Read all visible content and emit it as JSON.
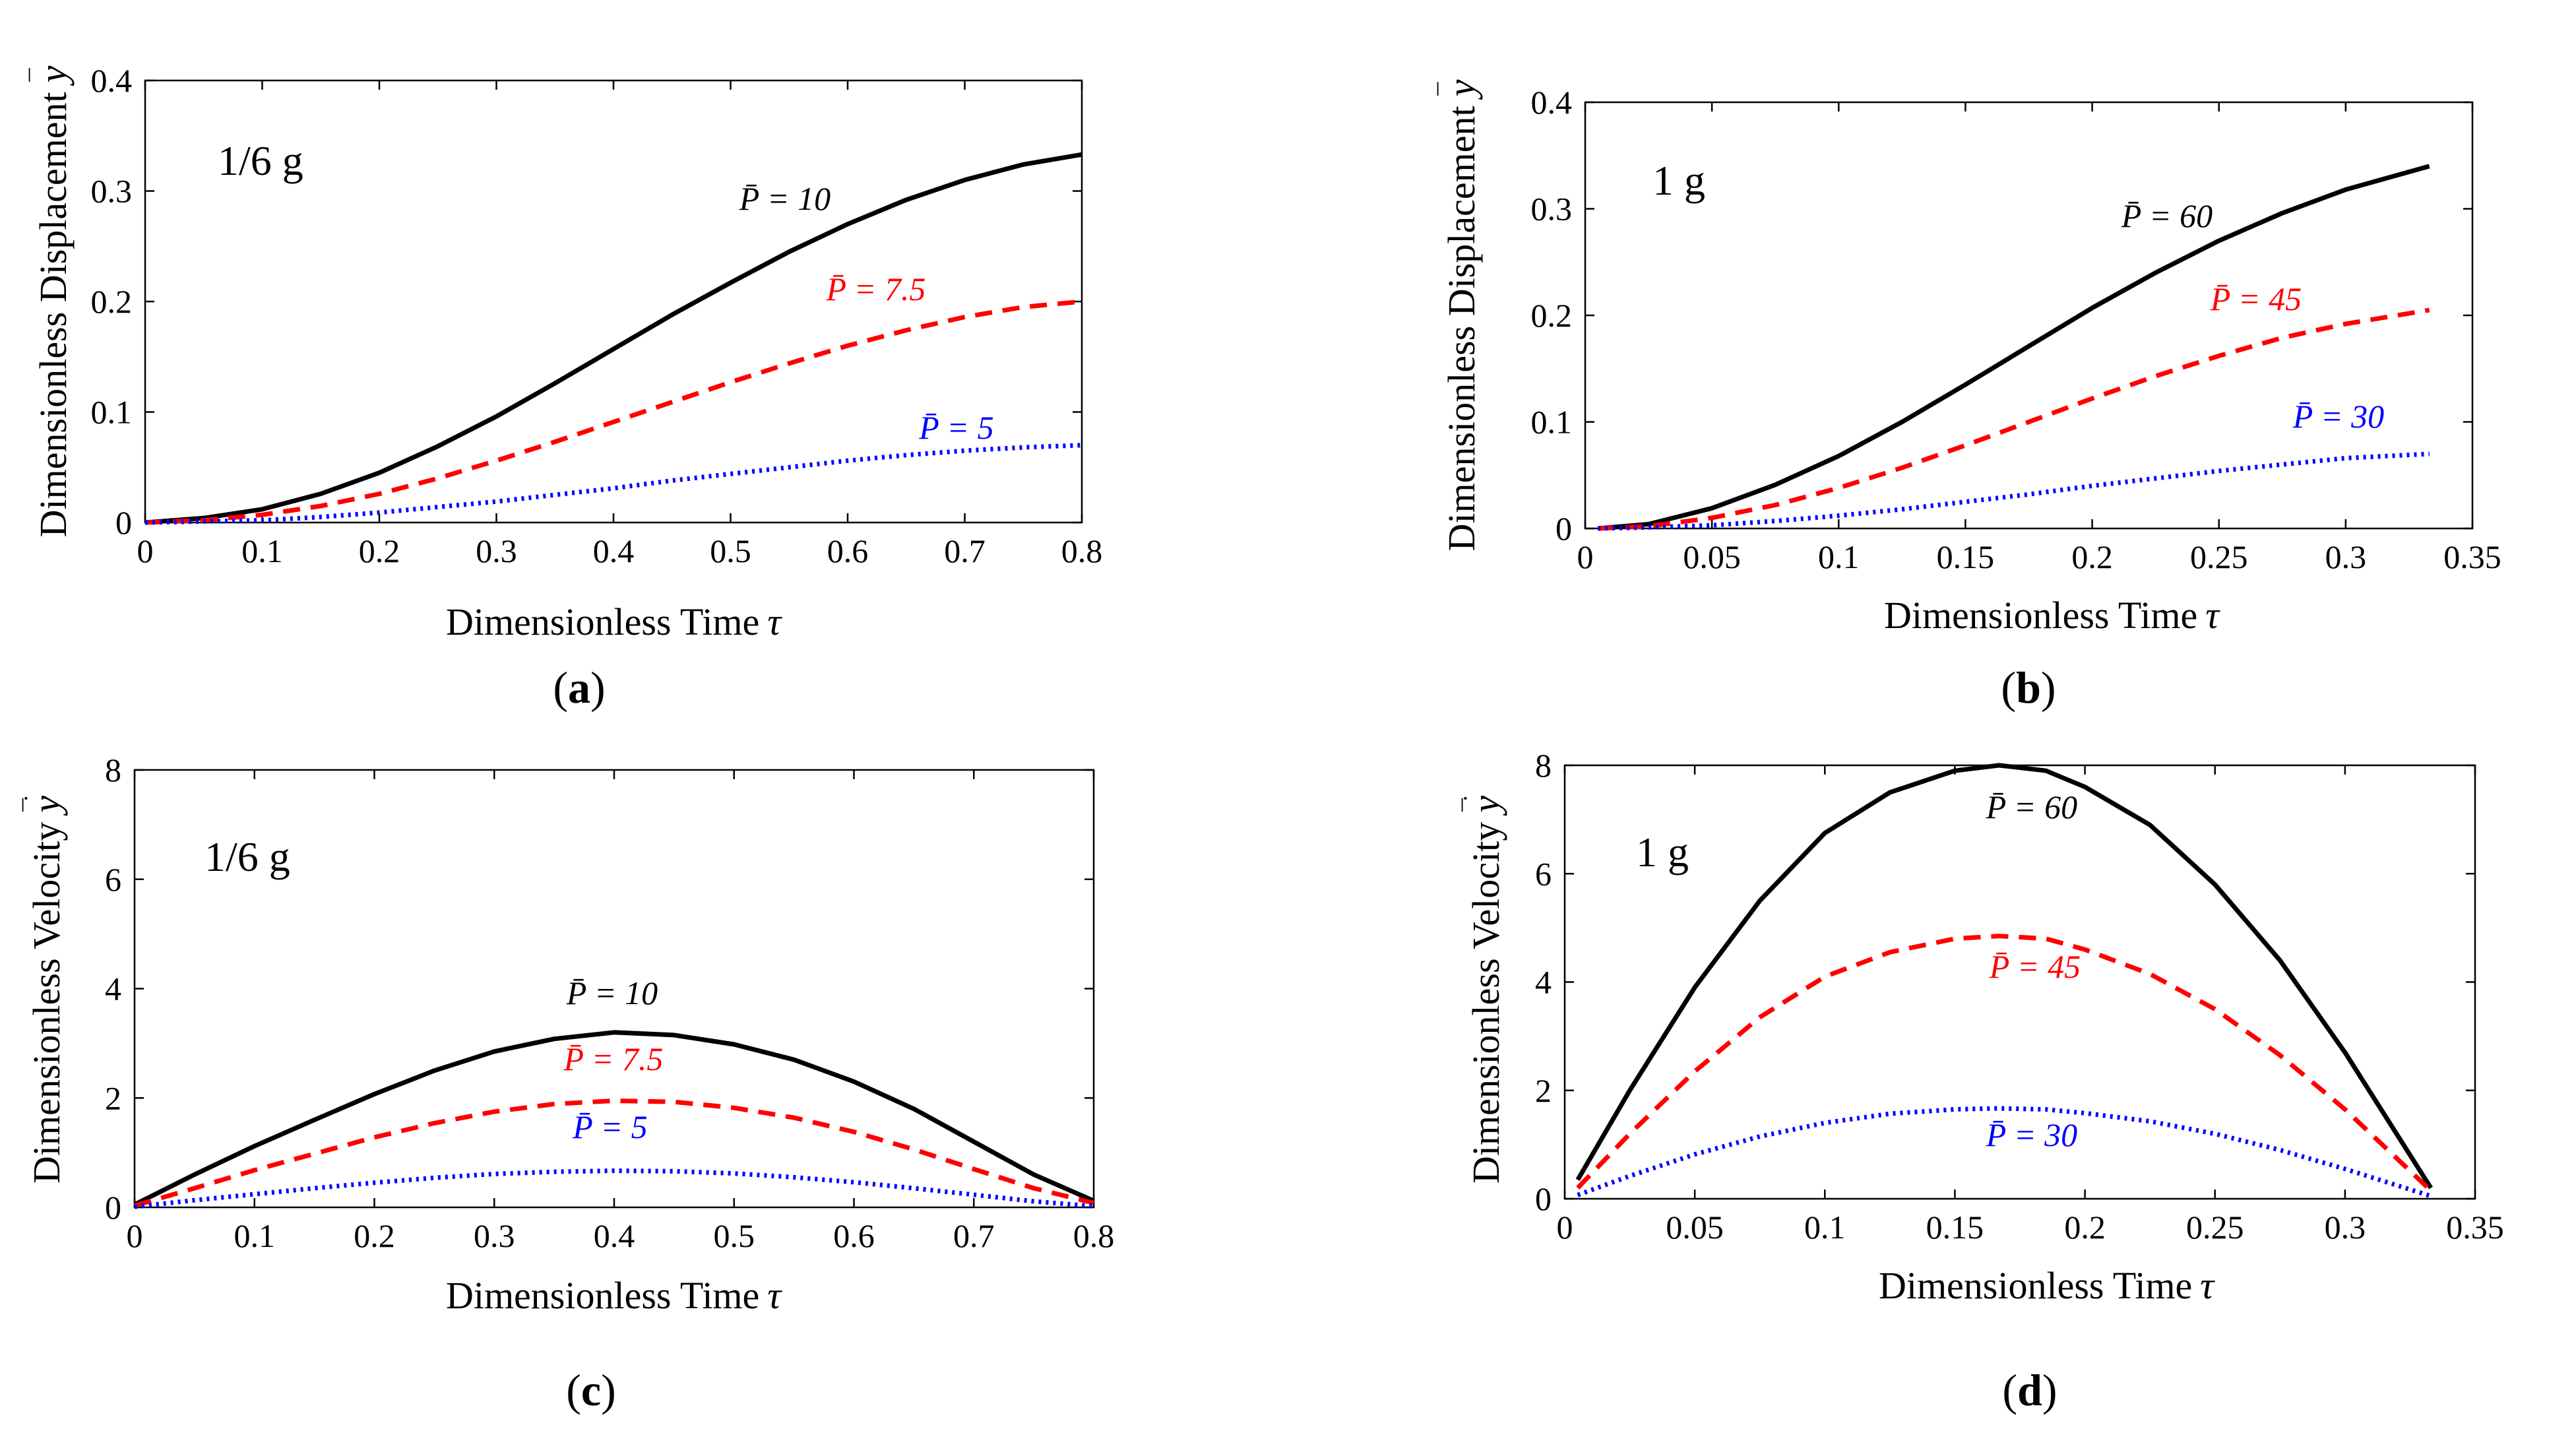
{
  "chart_data": [
    {
      "id": "a",
      "type": "line",
      "caption": "a",
      "gravity_label": "1/6 g",
      "xlabel": "Dimensionless Time",
      "xlabel_symbol": "τ",
      "ylabel": "Dimensionless Displacement",
      "ylabel_symbol": "y",
      "ylabel_accent": "¯",
      "xlim": [
        0,
        0.8
      ],
      "ylim": [
        0,
        0.4
      ],
      "xticks": [
        0,
        0.1,
        0.2,
        0.3,
        0.4,
        0.5,
        0.6,
        0.7,
        0.8
      ],
      "yticks": [
        0,
        0.1,
        0.2,
        0.3,
        0.4
      ],
      "grid": false,
      "series": [
        {
          "name": "P̄ = 10",
          "color": "#000000",
          "style": "solid",
          "x": [
            0,
            0.05,
            0.1,
            0.15,
            0.2,
            0.25,
            0.3,
            0.35,
            0.4,
            0.45,
            0.5,
            0.55,
            0.6,
            0.65,
            0.7,
            0.75,
            0.8
          ],
          "y": [
            0,
            0.004,
            0.012,
            0.026,
            0.045,
            0.069,
            0.096,
            0.126,
            0.157,
            0.188,
            0.217,
            0.245,
            0.27,
            0.292,
            0.31,
            0.324,
            0.333
          ]
        },
        {
          "name": "P̄ = 7.5",
          "color": "#ff0000",
          "style": "dashed",
          "x": [
            0,
            0.05,
            0.1,
            0.15,
            0.2,
            0.25,
            0.3,
            0.35,
            0.4,
            0.45,
            0.5,
            0.55,
            0.6,
            0.65,
            0.7,
            0.75,
            0.8
          ],
          "y": [
            0,
            0.002,
            0.007,
            0.015,
            0.026,
            0.04,
            0.056,
            0.073,
            0.091,
            0.109,
            0.127,
            0.144,
            0.16,
            0.174,
            0.186,
            0.195,
            0.2
          ]
        },
        {
          "name": "P̄ = 5",
          "color": "#0000ff",
          "style": "dotted",
          "x": [
            0,
            0.05,
            0.1,
            0.15,
            0.2,
            0.25,
            0.3,
            0.35,
            0.4,
            0.45,
            0.5,
            0.55,
            0.6,
            0.65,
            0.7,
            0.75,
            0.8
          ],
          "y": [
            0,
            0.001,
            0.002,
            0.005,
            0.009,
            0.014,
            0.019,
            0.025,
            0.031,
            0.038,
            0.044,
            0.05,
            0.056,
            0.061,
            0.065,
            0.068,
            0.07
          ]
        }
      ]
    },
    {
      "id": "b",
      "type": "line",
      "caption": "b",
      "gravity_label": "1 g",
      "xlabel": "Dimensionless Time",
      "xlabel_symbol": "τ",
      "ylabel": "Dimensionless Displacement",
      "ylabel_symbol": "y",
      "ylabel_accent": "¯",
      "xlim": [
        0,
        0.35
      ],
      "ylim": [
        0,
        0.4
      ],
      "xticks": [
        0,
        0.05,
        0.1,
        0.15,
        0.2,
        0.25,
        0.3,
        0.35
      ],
      "yticks": [
        0,
        0.1,
        0.2,
        0.3,
        0.4
      ],
      "grid": false,
      "series": [
        {
          "name": "P̄ = 60",
          "color": "#000000",
          "style": "solid",
          "x": [
            0.005,
            0.025,
            0.05,
            0.075,
            0.1,
            0.125,
            0.15,
            0.175,
            0.2,
            0.225,
            0.25,
            0.275,
            0.3,
            0.333
          ],
          "y": [
            0,
            0.004,
            0.019,
            0.041,
            0.068,
            0.1,
            0.135,
            0.171,
            0.207,
            0.24,
            0.27,
            0.296,
            0.318,
            0.34
          ]
        },
        {
          "name": "P̄ = 45",
          "color": "#ff0000",
          "style": "dashed",
          "x": [
            0.005,
            0.025,
            0.05,
            0.075,
            0.1,
            0.125,
            0.15,
            0.175,
            0.2,
            0.225,
            0.25,
            0.275,
            0.3,
            0.333
          ],
          "y": [
            0,
            0.002,
            0.01,
            0.022,
            0.038,
            0.057,
            0.078,
            0.1,
            0.122,
            0.143,
            0.162,
            0.179,
            0.192,
            0.205
          ]
        },
        {
          "name": "P̄ = 30",
          "color": "#0000ff",
          "style": "dotted",
          "x": [
            0.005,
            0.025,
            0.05,
            0.075,
            0.1,
            0.125,
            0.15,
            0.175,
            0.2,
            0.225,
            0.25,
            0.275,
            0.3,
            0.333
          ],
          "y": [
            0,
            0.001,
            0.003,
            0.007,
            0.012,
            0.018,
            0.025,
            0.032,
            0.04,
            0.047,
            0.054,
            0.06,
            0.066,
            0.07
          ]
        }
      ]
    },
    {
      "id": "c",
      "type": "line",
      "caption": "c",
      "gravity_label": "1/6 g",
      "xlabel": "Dimensionless Time",
      "xlabel_symbol": "τ",
      "ylabel": "Dimensionless Velocity",
      "ylabel_symbol": "y",
      "ylabel_accent": "¯̇",
      "xlim": [
        0,
        0.8
      ],
      "ylim": [
        0,
        8
      ],
      "xticks": [
        0,
        0.1,
        0.2,
        0.3,
        0.4,
        0.5,
        0.6,
        0.7,
        0.8
      ],
      "yticks": [
        0,
        2,
        4,
        6,
        8
      ],
      "grid": false,
      "series": [
        {
          "name": "P̄ = 10",
          "color": "#000000",
          "style": "solid",
          "x": [
            0,
            0.05,
            0.1,
            0.15,
            0.2,
            0.25,
            0.3,
            0.35,
            0.4,
            0.45,
            0.5,
            0.55,
            0.6,
            0.65,
            0.7,
            0.75,
            0.8
          ],
          "y": [
            0.05,
            0.6,
            1.12,
            1.6,
            2.07,
            2.5,
            2.85,
            3.08,
            3.2,
            3.15,
            2.98,
            2.7,
            2.3,
            1.8,
            1.2,
            0.6,
            0.12
          ]
        },
        {
          "name": "P̄ = 7.5",
          "color": "#ff0000",
          "style": "dashed",
          "x": [
            0,
            0.05,
            0.1,
            0.15,
            0.2,
            0.25,
            0.3,
            0.35,
            0.4,
            0.45,
            0.5,
            0.55,
            0.6,
            0.65,
            0.7,
            0.75,
            0.8
          ],
          "y": [
            0.03,
            0.35,
            0.68,
            0.98,
            1.28,
            1.54,
            1.75,
            1.89,
            1.95,
            1.93,
            1.82,
            1.64,
            1.38,
            1.06,
            0.7,
            0.35,
            0.08
          ]
        },
        {
          "name": "P̄ = 5",
          "color": "#0000ff",
          "style": "dotted",
          "x": [
            0,
            0.05,
            0.1,
            0.15,
            0.2,
            0.25,
            0.3,
            0.35,
            0.4,
            0.45,
            0.5,
            0.55,
            0.6,
            0.65,
            0.7,
            0.75,
            0.8
          ],
          "y": [
            0.01,
            0.13,
            0.24,
            0.35,
            0.45,
            0.54,
            0.61,
            0.65,
            0.67,
            0.66,
            0.62,
            0.55,
            0.46,
            0.35,
            0.23,
            0.11,
            0.02
          ]
        }
      ]
    },
    {
      "id": "d",
      "type": "line",
      "caption": "d",
      "gravity_label": "1 g",
      "xlabel": "Dimensionless Time",
      "xlabel_symbol": "τ",
      "ylabel": "Dimensionless Velocity",
      "ylabel_symbol": "y",
      "ylabel_accent": "¯̇",
      "xlim": [
        0,
        0.35
      ],
      "ylim": [
        0,
        8
      ],
      "xticks": [
        0,
        0.05,
        0.1,
        0.15,
        0.2,
        0.25,
        0.3,
        0.35
      ],
      "yticks": [
        0,
        2,
        4,
        6,
        8
      ],
      "grid": false,
      "series": [
        {
          "name": "P̄ = 60",
          "color": "#000000",
          "style": "solid",
          "x": [
            0.005,
            0.025,
            0.05,
            0.075,
            0.1,
            0.125,
            0.15,
            0.167,
            0.185,
            0.2,
            0.225,
            0.25,
            0.275,
            0.3,
            0.333
          ],
          "y": [
            0.35,
            2.0,
            3.9,
            5.5,
            6.75,
            7.5,
            7.9,
            8.0,
            7.9,
            7.6,
            6.9,
            5.8,
            4.4,
            2.7,
            0.2
          ]
        },
        {
          "name": "P̄ = 45",
          "color": "#ff0000",
          "style": "dashed",
          "x": [
            0.005,
            0.025,
            0.05,
            0.075,
            0.1,
            0.125,
            0.15,
            0.167,
            0.185,
            0.2,
            0.225,
            0.25,
            0.275,
            0.3,
            0.333
          ],
          "y": [
            0.2,
            1.2,
            2.35,
            3.35,
            4.1,
            4.55,
            4.8,
            4.85,
            4.8,
            4.6,
            4.15,
            3.5,
            2.65,
            1.65,
            0.15
          ]
        },
        {
          "name": "P̄ = 30",
          "color": "#0000ff",
          "style": "dotted",
          "x": [
            0.005,
            0.025,
            0.05,
            0.075,
            0.1,
            0.125,
            0.15,
            0.167,
            0.185,
            0.2,
            0.225,
            0.25,
            0.275,
            0.3,
            0.333
          ],
          "y": [
            0.07,
            0.42,
            0.82,
            1.15,
            1.4,
            1.57,
            1.65,
            1.67,
            1.65,
            1.58,
            1.43,
            1.2,
            0.9,
            0.55,
            0.05
          ]
        }
      ]
    }
  ]
}
